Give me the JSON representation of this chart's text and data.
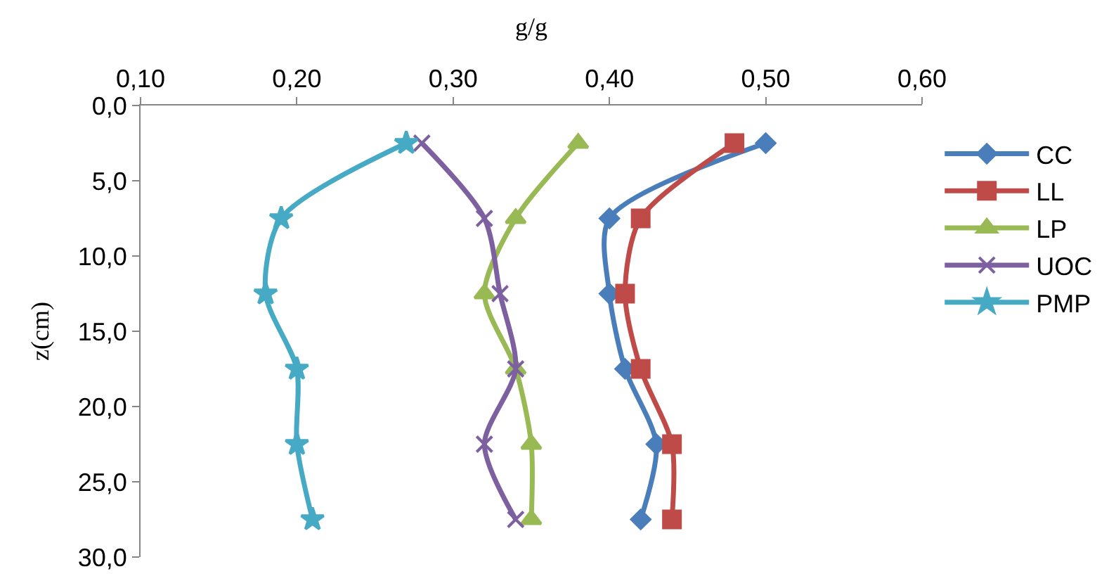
{
  "chart_data": {
    "type": "line",
    "xlabel": "g/g",
    "ylabel": "z(cm)",
    "xlim": [
      0.1,
      0.6
    ],
    "xticks": [
      {
        "value": 0.1,
        "label": "0,10"
      },
      {
        "value": 0.2,
        "label": "0,20"
      },
      {
        "value": 0.3,
        "label": "0,30"
      },
      {
        "value": 0.4,
        "label": "0,40"
      },
      {
        "value": 0.5,
        "label": "0,50"
      },
      {
        "value": 0.6,
        "label": "0,60"
      }
    ],
    "ylim": [
      30,
      0
    ],
    "yticks": [
      {
        "value": 0,
        "label": "0,0"
      },
      {
        "value": 5,
        "label": "5,0"
      },
      {
        "value": 10,
        "label": "10,0"
      },
      {
        "value": 15,
        "label": "15,0"
      },
      {
        "value": 20,
        "label": "20,0"
      },
      {
        "value": 25,
        "label": "25,0"
      },
      {
        "value": 30,
        "label": "30,0"
      }
    ],
    "legend": "right",
    "series": [
      {
        "name": "CC",
        "color": "#4a7ebb",
        "marker": "diamond",
        "x": [
          0.5,
          0.4,
          0.4,
          0.41,
          0.43,
          0.42
        ],
        "values": [
          2.5,
          7.5,
          12.5,
          17.5,
          22.5,
          27.5
        ]
      },
      {
        "name": "LL",
        "color": "#be4b48",
        "marker": "square",
        "x": [
          0.48,
          0.42,
          0.41,
          0.42,
          0.44,
          0.44
        ],
        "values": [
          2.5,
          7.5,
          12.5,
          17.5,
          22.5,
          27.5
        ]
      },
      {
        "name": "LP",
        "color": "#98b954",
        "marker": "triangle",
        "x": [
          0.38,
          0.34,
          0.32,
          0.34,
          0.35,
          0.35
        ],
        "values": [
          2.5,
          7.5,
          12.5,
          17.5,
          22.5,
          27.5
        ]
      },
      {
        "name": "UOC",
        "color": "#7d60a0",
        "marker": "cross",
        "x": [
          0.28,
          0.32,
          0.33,
          0.34,
          0.32,
          0.34
        ],
        "values": [
          2.5,
          7.5,
          12.5,
          17.5,
          22.5,
          27.5
        ]
      },
      {
        "name": "PMP",
        "color": "#46aac5",
        "marker": "star",
        "x": [
          0.27,
          0.19,
          0.18,
          0.2,
          0.2,
          0.21
        ],
        "values": [
          2.5,
          7.5,
          12.5,
          17.5,
          22.5,
          27.5
        ]
      }
    ]
  }
}
